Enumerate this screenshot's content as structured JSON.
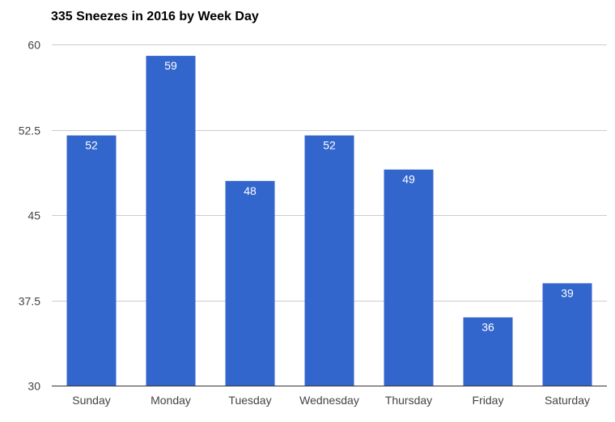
{
  "chart_data": {
    "type": "bar",
    "title": "335 Sneezes in 2016 by Week Day",
    "xlabel": "",
    "ylabel": "",
    "categories": [
      "Sunday",
      "Monday",
      "Tuesday",
      "Wednesday",
      "Thursday",
      "Friday",
      "Saturday"
    ],
    "values": [
      52,
      59,
      48,
      52,
      49,
      36,
      39
    ],
    "ylim": [
      30,
      60
    ],
    "yticks": [
      "30",
      "37.5",
      "45",
      "52.5",
      "60"
    ],
    "grid": true,
    "legend": "none",
    "bar_color": "#3366cc",
    "grid_color": "#cccccc"
  }
}
